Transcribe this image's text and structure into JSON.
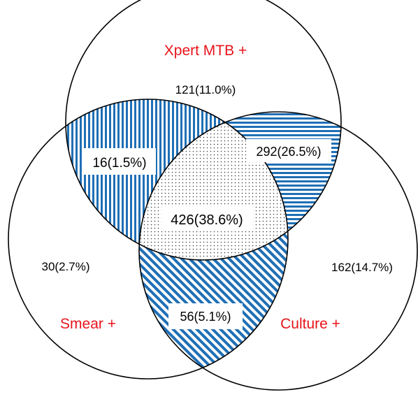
{
  "sets": {
    "xpert": {
      "label": "Xpert MTB +"
    },
    "smear": {
      "label": "Smear +"
    },
    "culture": {
      "label": "Culture +"
    }
  },
  "regions": {
    "xpert_only": "121(11.0%)",
    "smear_only": "30(2.7%)",
    "culture_only": "162(14.7%)",
    "xpert_smear": "16(1.5%)",
    "xpert_culture": "292(26.5%)",
    "smear_culture": "56(5.1%)",
    "all_three": "426(38.6%)"
  },
  "colors": {
    "hatch": "#1f6fb5",
    "label": "#e8141c",
    "outline": "#000000"
  }
}
